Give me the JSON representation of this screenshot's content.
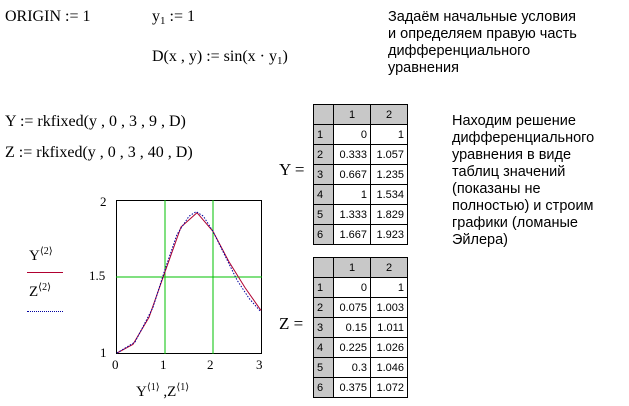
{
  "definitions": {
    "origin": "ORIGIN := 1",
    "y1_lhs": "y",
    "y1_sub": "1",
    "y1_rhs": " := 1",
    "d_lhs": "D(x , y) := sin(x · y",
    "d_sub": "1",
    "d_end": ")",
    "y_def": "Y := rkfixed(y , 0 , 3 , 9 , D)",
    "z_def": "Z := rkfixed(y , 0 , 3 , 40 , D)"
  },
  "comments": {
    "top": [
      "Задаём начальные условия",
      "и определяем правую часть",
      "дифференциального",
      "уравнения"
    ],
    "right": [
      "Находим решение",
      "дифференциального",
      "уравнения в виде",
      "таблиц значений",
      "(показаны не",
      "полностью) и строим",
      "графики (ломаные",
      "Эйлера)"
    ]
  },
  "matrix_y": {
    "label": "Y =",
    "col_headers": [
      "1",
      "2"
    ],
    "row_headers": [
      "1",
      "2",
      "3",
      "4",
      "5",
      "6"
    ],
    "rows": [
      [
        "0",
        "1"
      ],
      [
        "0.333",
        "1.057"
      ],
      [
        "0.667",
        "1.235"
      ],
      [
        "1",
        "1.534"
      ],
      [
        "1.333",
        "1.829"
      ],
      [
        "1.667",
        "1.923"
      ]
    ]
  },
  "matrix_z": {
    "label": "Z =",
    "col_headers": [
      "1",
      "2"
    ],
    "row_headers": [
      "1",
      "2",
      "3",
      "4",
      "5",
      "6"
    ],
    "rows": [
      [
        "0",
        "1"
      ],
      [
        "0.075",
        "1.003"
      ],
      [
        "0.15",
        "1.011"
      ],
      [
        "0.225",
        "1.026"
      ],
      [
        "0.3",
        "1.046"
      ],
      [
        "0.375",
        "1.072"
      ]
    ]
  },
  "plot_legend": {
    "series1": "Y",
    "series1_sup": "⟨2⟩",
    "series2": "Z",
    "series2_sup": "⟨2⟩",
    "x1": "Y",
    "x1_sup": "⟨1⟩",
    "x_sep": " ,Z",
    "x2_sup": "⟨1⟩"
  },
  "chart_data": {
    "type": "line",
    "xlim": [
      0,
      3
    ],
    "ylim": [
      1,
      2
    ],
    "x_ticks": [
      "0",
      "1",
      "2",
      "3"
    ],
    "y_ticks": [
      "1",
      "1.5",
      "2"
    ],
    "grid": true,
    "series": [
      {
        "name": "Y⟨2⟩",
        "color": "#b00030",
        "x": [
          0,
          0.333,
          0.667,
          1,
          1.333,
          1.667,
          2,
          2.333,
          2.667,
          3
        ],
        "y": [
          1,
          1.057,
          1.235,
          1.534,
          1.829,
          1.923,
          1.8,
          1.6,
          1.43,
          1.28
        ]
      },
      {
        "name": "Z⟨2⟩",
        "color": "#0000a0",
        "x": [
          0,
          0.375,
          0.75,
          1,
          1.25,
          1.5,
          1.65,
          1.8,
          2,
          2.25,
          2.5,
          2.75,
          3
        ],
        "y": [
          1,
          1.072,
          1.3,
          1.55,
          1.78,
          1.9,
          1.93,
          1.9,
          1.8,
          1.64,
          1.48,
          1.36,
          1.27
        ]
      }
    ]
  }
}
